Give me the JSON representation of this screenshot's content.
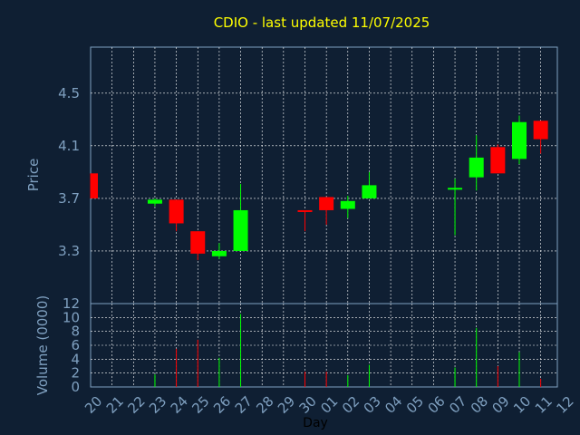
{
  "chart_data": {
    "type": "candlestick",
    "title": "CDIO - last updated 11/07/2025",
    "xlabel": "Day",
    "x_ticks": [
      "20",
      "21",
      "22",
      "23",
      "24",
      "25",
      "26",
      "27",
      "28",
      "29",
      "30",
      "01",
      "02",
      "03",
      "04",
      "05",
      "06",
      "07",
      "08",
      "09",
      "10",
      "11",
      "12"
    ],
    "price": {
      "ylabel": "Price",
      "ylim": [
        2.9,
        4.85
      ],
      "y_ticks": [
        3.3,
        3.7,
        4.1,
        4.5
      ],
      "candles": [
        {
          "day": "20",
          "open": 3.89,
          "close": 3.7,
          "high": 3.89,
          "low": 3.7
        },
        {
          "day": "23",
          "open": 3.66,
          "close": 3.69,
          "high": 3.7,
          "low": 3.64
        },
        {
          "day": "24",
          "open": 3.69,
          "close": 3.51,
          "high": 3.69,
          "low": 3.45
        },
        {
          "day": "25",
          "open": 3.45,
          "close": 3.28,
          "high": 3.45,
          "low": 3.23
        },
        {
          "day": "26",
          "open": 3.26,
          "close": 3.3,
          "high": 3.36,
          "low": 3.24
        },
        {
          "day": "27",
          "open": 3.3,
          "close": 3.61,
          "high": 3.81,
          "low": 3.3
        },
        {
          "day": "30",
          "open": 3.61,
          "close": 3.6,
          "high": 3.61,
          "low": 3.45
        },
        {
          "day": "01",
          "open": 3.71,
          "close": 3.61,
          "high": 3.71,
          "low": 3.5
        },
        {
          "day": "02",
          "open": 3.62,
          "close": 3.68,
          "high": 3.72,
          "low": 3.55
        },
        {
          "day": "03",
          "open": 3.7,
          "close": 3.8,
          "high": 3.9,
          "low": 3.7
        },
        {
          "day": "07",
          "open": 3.77,
          "close": 3.78,
          "high": 3.85,
          "low": 3.42
        },
        {
          "day": "08",
          "open": 3.86,
          "close": 4.01,
          "high": 4.18,
          "low": 3.76
        },
        {
          "day": "09",
          "open": 4.09,
          "close": 3.89,
          "high": 4.11,
          "low": 3.89
        },
        {
          "day": "10",
          "open": 4.0,
          "close": 4.28,
          "high": 4.33,
          "low": 3.96
        },
        {
          "day": "11",
          "open": 4.29,
          "close": 4.15,
          "high": 4.29,
          "low": 4.04
        }
      ]
    },
    "volume": {
      "ylabel": "Volume (0000)",
      "ylim": [
        0,
        12
      ],
      "y_ticks": [
        0,
        2,
        4,
        6,
        8,
        10,
        12
      ],
      "bars": [
        {
          "day": "23",
          "value": 1.8,
          "color": "#00ff00"
        },
        {
          "day": "24",
          "value": 5.5,
          "color": "#ff0000"
        },
        {
          "day": "25",
          "value": 6.8,
          "color": "#ff0000"
        },
        {
          "day": "26",
          "value": 4.2,
          "color": "#00ff00"
        },
        {
          "day": "27",
          "value": 10.5,
          "color": "#00ff00"
        },
        {
          "day": "30",
          "value": 2.2,
          "color": "#ff0000"
        },
        {
          "day": "01",
          "value": 2.2,
          "color": "#ff0000"
        },
        {
          "day": "02",
          "value": 1.7,
          "color": "#00ff00"
        },
        {
          "day": "03",
          "value": 3.2,
          "color": "#00ff00"
        },
        {
          "day": "07",
          "value": 2.8,
          "color": "#00ff00"
        },
        {
          "day": "08",
          "value": 8.5,
          "color": "#00ff00"
        },
        {
          "day": "09",
          "value": 3.0,
          "color": "#ff0000"
        },
        {
          "day": "10",
          "value": 5.0,
          "color": "#00ff00"
        },
        {
          "day": "11",
          "value": 1.2,
          "color": "#ff0000"
        }
      ]
    },
    "colors": {
      "background": "#0f1f33",
      "up": "#00ff00",
      "down": "#ff0000",
      "grid": "#ffffff",
      "title": "#ffff00",
      "axis_text": "#7fa0c0"
    },
    "grid": true
  }
}
